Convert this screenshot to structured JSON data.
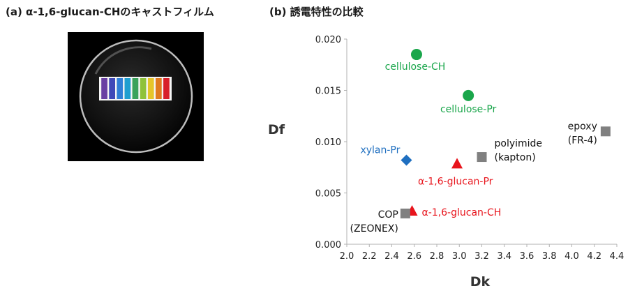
{
  "panel_a": {
    "label": "(a) α-1,6-glucan-CHのキャストフィルム",
    "stripe_colors": [
      "#6a3fa3",
      "#3f49b8",
      "#2f7fd6",
      "#1e9fd0",
      "#3aa25a",
      "#8fc23a",
      "#e6c52a",
      "#e07a1f",
      "#d8202a"
    ]
  },
  "panel_b": {
    "label": "(b) 誘電特性の比較"
  },
  "chart_data": {
    "type": "scatter",
    "xlabel": "Dk",
    "ylabel": "Df",
    "xlim": [
      2.0,
      4.4
    ],
    "ylim": [
      0.0,
      0.02
    ],
    "xticks": [
      "2.0",
      "2.2",
      "2.4",
      "2.6",
      "2.8",
      "3.0",
      "3.2",
      "3.4",
      "3.6",
      "3.8",
      "4.0",
      "4.2",
      "4.4"
    ],
    "yticks": [
      "0.000",
      "0.005",
      "0.010",
      "0.015",
      "0.020"
    ],
    "grid": false,
    "points": [
      {
        "label": "cellulose-CH",
        "x": 2.62,
        "y": 0.0185,
        "marker": "circle",
        "color": "#1aa64b"
      },
      {
        "label": "cellulose-Pr",
        "x": 3.08,
        "y": 0.0145,
        "marker": "circle",
        "color": "#1aa64b"
      },
      {
        "label": "xylan-Pr",
        "x": 2.53,
        "y": 0.0082,
        "marker": "diamond",
        "color": "#1f6fc0"
      },
      {
        "label": "α-1,6-glucan-Pr",
        "x": 2.98,
        "y": 0.0078,
        "marker": "triangle",
        "color": "#e8141c"
      },
      {
        "label": "α-1,6-glucan-CH",
        "x": 2.58,
        "y": 0.0032,
        "marker": "triangle",
        "color": "#e8141c"
      },
      {
        "label": "COP (ZEONEX)",
        "label_lines": [
          "COP",
          "(ZEONEX)"
        ],
        "x": 2.52,
        "y": 0.003,
        "marker": "square",
        "color": "#808080"
      },
      {
        "label": "polyimide (kapton)",
        "label_lines": [
          "polyimide",
          "(kapton)"
        ],
        "x": 3.2,
        "y": 0.0085,
        "marker": "square",
        "color": "#808080"
      },
      {
        "label": "epoxy (FR-4)",
        "label_lines": [
          "epoxy",
          "(FR-4)"
        ],
        "x": 4.3,
        "y": 0.011,
        "marker": "square",
        "color": "#808080"
      }
    ]
  }
}
